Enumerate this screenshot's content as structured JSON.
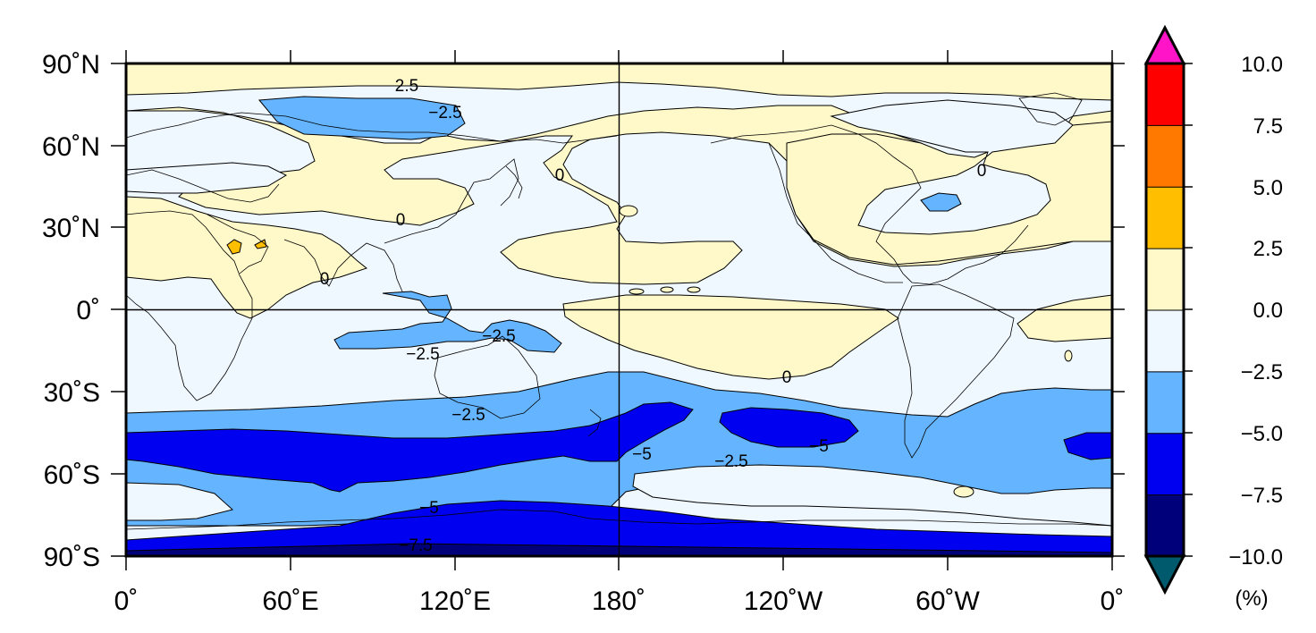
{
  "map": {
    "lat_labels": [
      "90˚N",
      "60˚N",
      "30˚N",
      "0˚",
      "30˚S",
      "60˚S",
      "90˚S"
    ],
    "lon_labels": [
      "0˚",
      "60˚E",
      "120˚E",
      "180˚",
      "120˚W",
      "60˚W",
      "0˚"
    ],
    "contour_labels": [
      "2.5",
      "−2.5",
      "0",
      "0",
      "0",
      "0",
      "−2.5",
      "−2.5",
      "0",
      "−2.5",
      "−5",
      "−2.5",
      "−5",
      "−5",
      "−7.5"
    ]
  },
  "colorbar": {
    "tick_labels": [
      "10.0",
      "7.5",
      "5.0",
      "2.5",
      "0.0",
      "−2.5",
      "−5.0",
      "−7.5",
      "−10.0"
    ],
    "unit": "(%)",
    "levels": [
      -10,
      -7.5,
      -5,
      -2.5,
      0,
      2.5,
      5,
      7.5,
      10
    ],
    "colors": [
      "#00007a",
      "#0000f0",
      "#64b4ff",
      "#f0f8ff",
      "#fff8c8",
      "#ffbe00",
      "#ff7800",
      "#ff0000"
    ],
    "under_color": "#005a6e",
    "over_color": "#ff14c8"
  }
}
